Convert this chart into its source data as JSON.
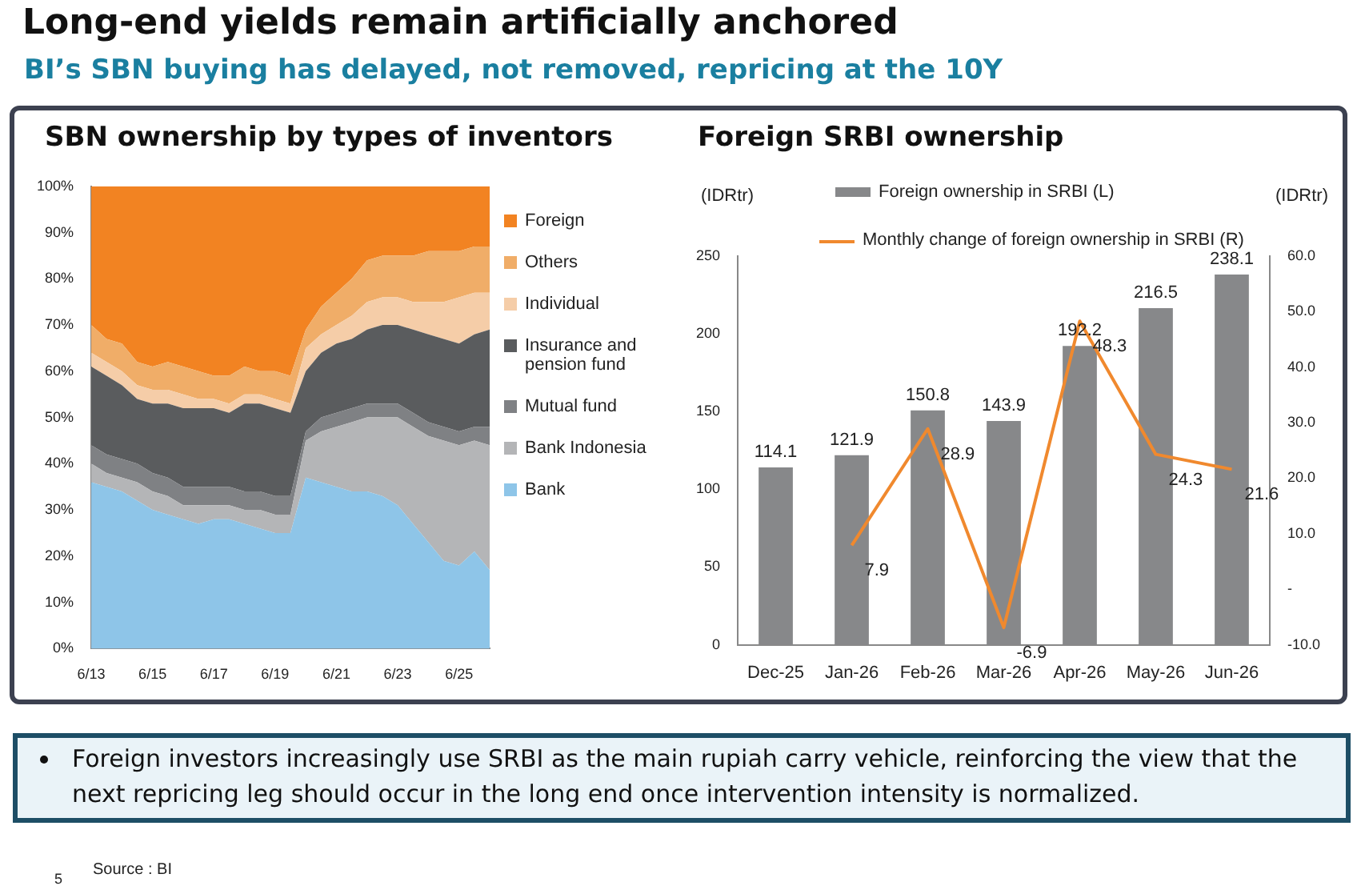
{
  "chart_data": [
    {
      "type": "area",
      "title": "SBN ownership by types of inventors",
      "stacked": true,
      "legend": "right",
      "marker": "none",
      "grid": false,
      "annotations": [
        "Long-end yields remain artificially anchored",
        "BI’s SBN buying has delayed, not removed, repricing at the 10Y",
        "Foreign investors increasingly use SRBI as the main rupiah carry vehicle, reinforcing the view that the next repricing leg should occur in the long end once intervention intensity is normalized.",
        "Source : BI",
        "5"
      ],
      "categories": [
        "6/13",
        null,
        null,
        null,
        "6/15",
        null,
        null,
        null,
        "6/17",
        null,
        null,
        null,
        "6/19",
        null,
        null,
        null,
        "6/21",
        null,
        null,
        null,
        "6/23",
        null,
        null,
        null,
        "6/25",
        null,
        null
      ],
      "ylim": [
        0,
        100
      ],
      "yticks": [
        {
          "value": 0,
          "label": "0%"
        },
        {
          "value": 10,
          "label": "10%"
        },
        {
          "value": 20,
          "label": "20%"
        },
        {
          "value": 30,
          "label": "30%"
        },
        {
          "value": 40,
          "label": "40%"
        },
        {
          "value": 50,
          "label": "50%"
        },
        {
          "value": 60,
          "label": "60%"
        },
        {
          "value": 70,
          "label": "70%"
        },
        {
          "value": 80,
          "label": "80%"
        },
        {
          "value": 90,
          "label": "90%"
        },
        {
          "value": 100,
          "label": "100%"
        }
      ],
      "series": [
        {
          "name": "Bank",
          "color": "#8ec5e8",
          "values": [
            36,
            35,
            34,
            32,
            30,
            29,
            28,
            27,
            28,
            28,
            27,
            26,
            25,
            25,
            37,
            36,
            35,
            34,
            34,
            33,
            31,
            27,
            23,
            19,
            18,
            21,
            17
          ]
        },
        {
          "name": "Bank Indonesia",
          "color": "#b4b5b7",
          "values": [
            4,
            3,
            3,
            4,
            4,
            4,
            3,
            4,
            3,
            3,
            3,
            4,
            4,
            4,
            8,
            11,
            13,
            15,
            16,
            17,
            19,
            21,
            23,
            26,
            26,
            24,
            27
          ]
        },
        {
          "name": "Mutual fund",
          "color": "#7f8184",
          "values": [
            4,
            4,
            4,
            4,
            4,
            4,
            4,
            4,
            4,
            4,
            4,
            4,
            4,
            4,
            2,
            3,
            3,
            3,
            3,
            3,
            3,
            3,
            3,
            3,
            3,
            3,
            4
          ]
        },
        {
          "name": "Insurance and pension fund",
          "color": "#5a5c5e",
          "values": [
            17,
            17,
            16,
            14,
            15,
            16,
            17,
            17,
            17,
            16,
            19,
            19,
            19,
            18,
            13,
            14,
            15,
            15,
            16,
            17,
            17,
            18,
            19,
            19,
            19,
            20,
            21
          ]
        },
        {
          "name": "Individual",
          "color": "#f5cda8",
          "values": [
            3,
            3,
            3,
            3,
            3,
            3,
            3,
            2,
            2,
            2,
            2,
            2,
            2,
            2,
            5,
            4,
            4,
            5,
            6,
            6,
            6,
            6,
            7,
            8,
            10,
            9,
            8
          ]
        },
        {
          "name": "Others",
          "color": "#f0ad68",
          "values": [
            6,
            5,
            6,
            5,
            5,
            6,
            6,
            6,
            5,
            6,
            6,
            5,
            6,
            6,
            4,
            6,
            7,
            8,
            9,
            9,
            9,
            10,
            11,
            11,
            10,
            10,
            10
          ]
        },
        {
          "name": "Foreign",
          "color": "#f28322",
          "values": [
            30,
            33,
            34,
            38,
            39,
            38,
            39,
            40,
            41,
            41,
            39,
            40,
            40,
            41,
            31,
            26,
            23,
            20,
            16,
            15,
            15,
            15,
            14,
            14,
            14,
            13,
            13
          ]
        }
      ]
    },
    {
      "type": "bar",
      "title": "Foreign SRBI ownership",
      "legend": "top",
      "marker": "none",
      "line_style": "solid",
      "grid": false,
      "data_labels": true,
      "ylabel": "(IDRtr)",
      "y2label": "(IDRtr)",
      "categories": [
        "Dec-25",
        "Jan-26",
        "Feb-26",
        "Mar-26",
        "Apr-26",
        "May-26",
        "Jun-26"
      ],
      "ylim": [
        0,
        250
      ],
      "yticks": [
        0,
        50,
        100,
        150,
        200,
        250
      ],
      "y2lim": [
        -10,
        60
      ],
      "y2ticks": [
        {
          "value": -10,
          "label": "-10.0"
        },
        {
          "value": 0,
          "label": "-"
        },
        {
          "value": 10,
          "label": "10.0"
        },
        {
          "value": 20,
          "label": "20.0"
        },
        {
          "value": 30,
          "label": "30.0"
        },
        {
          "value": 40,
          "label": "40.0"
        },
        {
          "value": 50,
          "label": "50.0"
        },
        {
          "value": 60,
          "label": "60.0"
        }
      ],
      "series": [
        {
          "name": "Foreign ownership in SRBI (L)",
          "color": "#87888a",
          "values": [
            114.1,
            121.9,
            150.8,
            143.9,
            192.2,
            216.5,
            238.1
          ]
        },
        {
          "name": "Monthly change of foreign ownership in SRBI (R)",
          "type": "line",
          "axis": "y2",
          "color": "#f0892e",
          "values": [
            null,
            7.9,
            28.9,
            -6.9,
            48.3,
            24.3,
            21.6
          ]
        }
      ]
    }
  ]
}
